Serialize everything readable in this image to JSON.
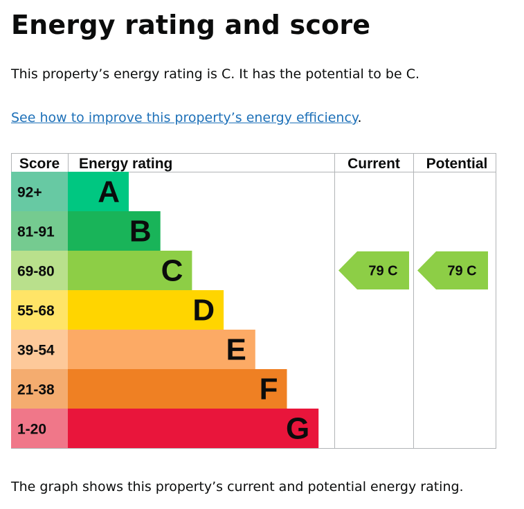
{
  "page": {
    "title": "Energy rating and score",
    "intro": "This property’s energy rating is C. It has the potential to be C.",
    "link_text": "See how to improve this property’s energy efficiency",
    "link_suffix": ".",
    "footer": "The graph shows this property’s current and potential energy rating."
  },
  "chart_data": {
    "type": "table",
    "headers": {
      "score": "Score",
      "rating": "Energy rating",
      "current": "Current",
      "potential": "Potential"
    },
    "bands": [
      {
        "score": "92+",
        "letter": "A",
        "color": "#00c781",
        "score_bg": "#67c9a3"
      },
      {
        "score": "81-91",
        "letter": "B",
        "color": "#19b459",
        "score_bg": "#75cb90"
      },
      {
        "score": "69-80",
        "letter": "C",
        "color": "#8dce46",
        "score_bg": "#b9e08c"
      },
      {
        "score": "55-68",
        "letter": "D",
        "color": "#ffd500",
        "score_bg": "#ffe467"
      },
      {
        "score": "39-54",
        "letter": "E",
        "color": "#fcaa65",
        "score_bg": "#fdc99a"
      },
      {
        "score": "21-38",
        "letter": "F",
        "color": "#ef8023",
        "score_bg": "#f4ac6f"
      },
      {
        "score": "1-20",
        "letter": "G",
        "color": "#e9153b",
        "score_bg": "#f07789"
      }
    ],
    "current": {
      "score": 79,
      "letter": "C",
      "label": "79  C",
      "color": "#8dce46"
    },
    "potential": {
      "score": 79,
      "letter": "C",
      "label": "79  C",
      "color": "#8dce46"
    }
  }
}
